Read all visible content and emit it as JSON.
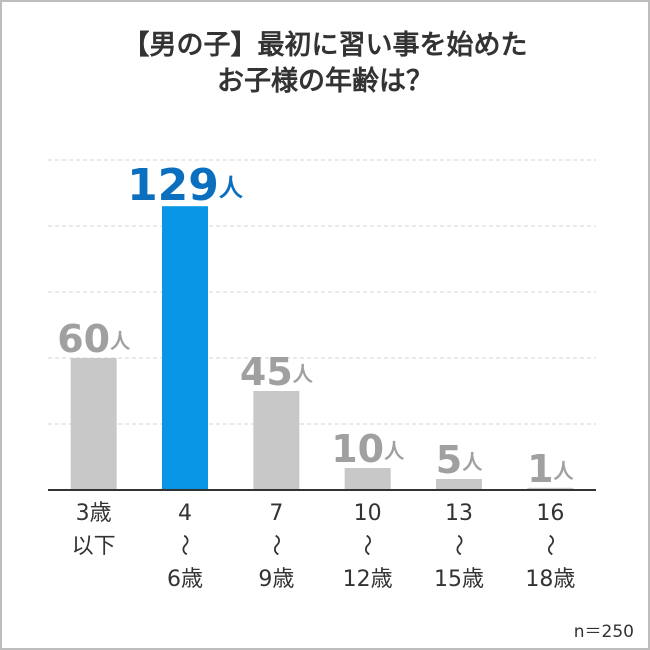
{
  "chart_data": {
    "type": "bar",
    "title": [
      "【男の子】最初に習い事を始めた",
      "お子様の年齢は？"
    ],
    "categories": [
      [
        "3歳",
        "以下"
      ],
      [
        "4",
        "～",
        "6歳"
      ],
      [
        "7",
        "～",
        "9歳"
      ],
      [
        "10",
        "～",
        "12歳"
      ],
      [
        "13",
        "～",
        "15歳"
      ],
      [
        "16",
        "～",
        "18歳"
      ]
    ],
    "values": [
      60,
      129,
      45,
      10,
      5,
      1
    ],
    "value_labels": [
      "60人",
      "129人",
      "45人",
      "10人",
      "5人",
      "1人"
    ],
    "colors": [
      "#c8c8c8",
      "#0a96e6",
      "#c8c8c8",
      "#c8c8c8",
      "#c8c8c8",
      "#c8c8c8"
    ],
    "label_colors": [
      "#a0a0a0",
      "#0a6fbe",
      "#a0a0a0",
      "#a0a0a0",
      "#a0a0a0",
      "#a0a0a0"
    ],
    "ylim": [
      0,
      150
    ],
    "yticks": [
      0,
      30,
      60,
      90,
      120,
      150
    ],
    "grid": true,
    "note": "n＝250"
  }
}
